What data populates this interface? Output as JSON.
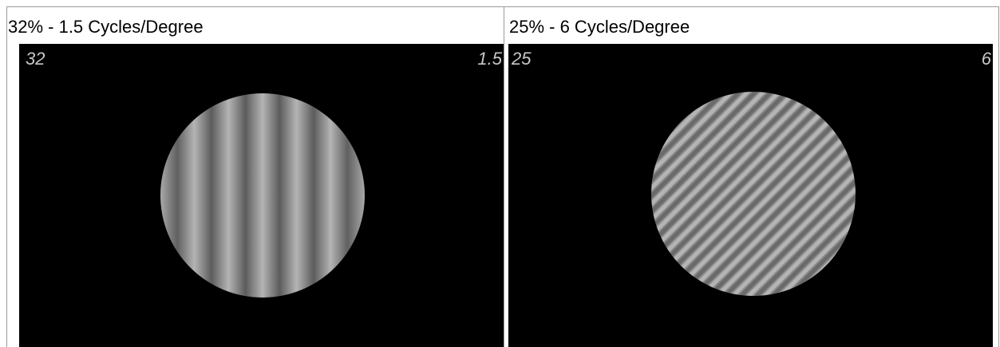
{
  "panels": [
    {
      "title": "32% - 1.5 Cycles/Degree",
      "contrast_label": "32",
      "frequency_label": "1.5",
      "contrast_percent": 32,
      "cycles_per_degree": 1.5,
      "orientation": "vertical"
    },
    {
      "title": "25% - 6 Cycles/Degree",
      "contrast_label": "25",
      "frequency_label": "6",
      "contrast_percent": 25,
      "cycles_per_degree": 6,
      "orientation": "diagonal"
    }
  ],
  "colors": {
    "background": "#000000",
    "grating_light": "#b4b4b4",
    "grating_dark": "#5a5a5a",
    "label_text": "#c8c8c8",
    "border": "#9a9a9a"
  }
}
